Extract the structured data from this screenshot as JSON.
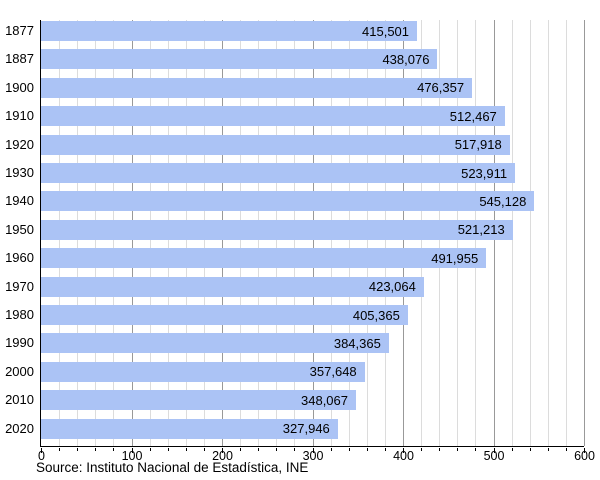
{
  "chart_data": {
    "type": "bar",
    "orientation": "horizontal",
    "title": "",
    "xlabel": "",
    "ylabel": "",
    "categories": [
      "1877",
      "1887",
      "1900",
      "1910",
      "1920",
      "1930",
      "1940",
      "1950",
      "1960",
      "1970",
      "1980",
      "1990",
      "2000",
      "2010",
      "2020"
    ],
    "values": [
      415501,
      438076,
      476357,
      512467,
      517918,
      523911,
      545128,
      521213,
      491955,
      423064,
      405365,
      384365,
      357648,
      348067,
      327946
    ],
    "value_labels": [
      "415,501",
      "438,076",
      "476,357",
      "512,467",
      "517,918",
      "523,911",
      "545,128",
      "521,213",
      "491,955",
      "423,064",
      "405,365",
      "384,365",
      "357,648",
      "348,067",
      "327,946"
    ],
    "x_axis": {
      "lim": [
        0,
        600
      ],
      "major_ticks": [
        0,
        100,
        200,
        300,
        400,
        500,
        600
      ],
      "major_tick_labels": [
        "0",
        "100",
        "200",
        "300",
        "400",
        "500",
        "600"
      ],
      "minor_tick_step": 20,
      "value_divisor": 1000
    },
    "grid": {
      "minor": true,
      "major": true,
      "direction": "vertical"
    },
    "legend": "none",
    "colors": {
      "bar": "#abc3f5",
      "grid_minor": "#dcdcdc",
      "grid_major": "#999999",
      "axis": "#000000",
      "text": "#000000",
      "background": "#ffffff"
    },
    "source": "Source: Instituto Nacional de Estadística, INE"
  }
}
